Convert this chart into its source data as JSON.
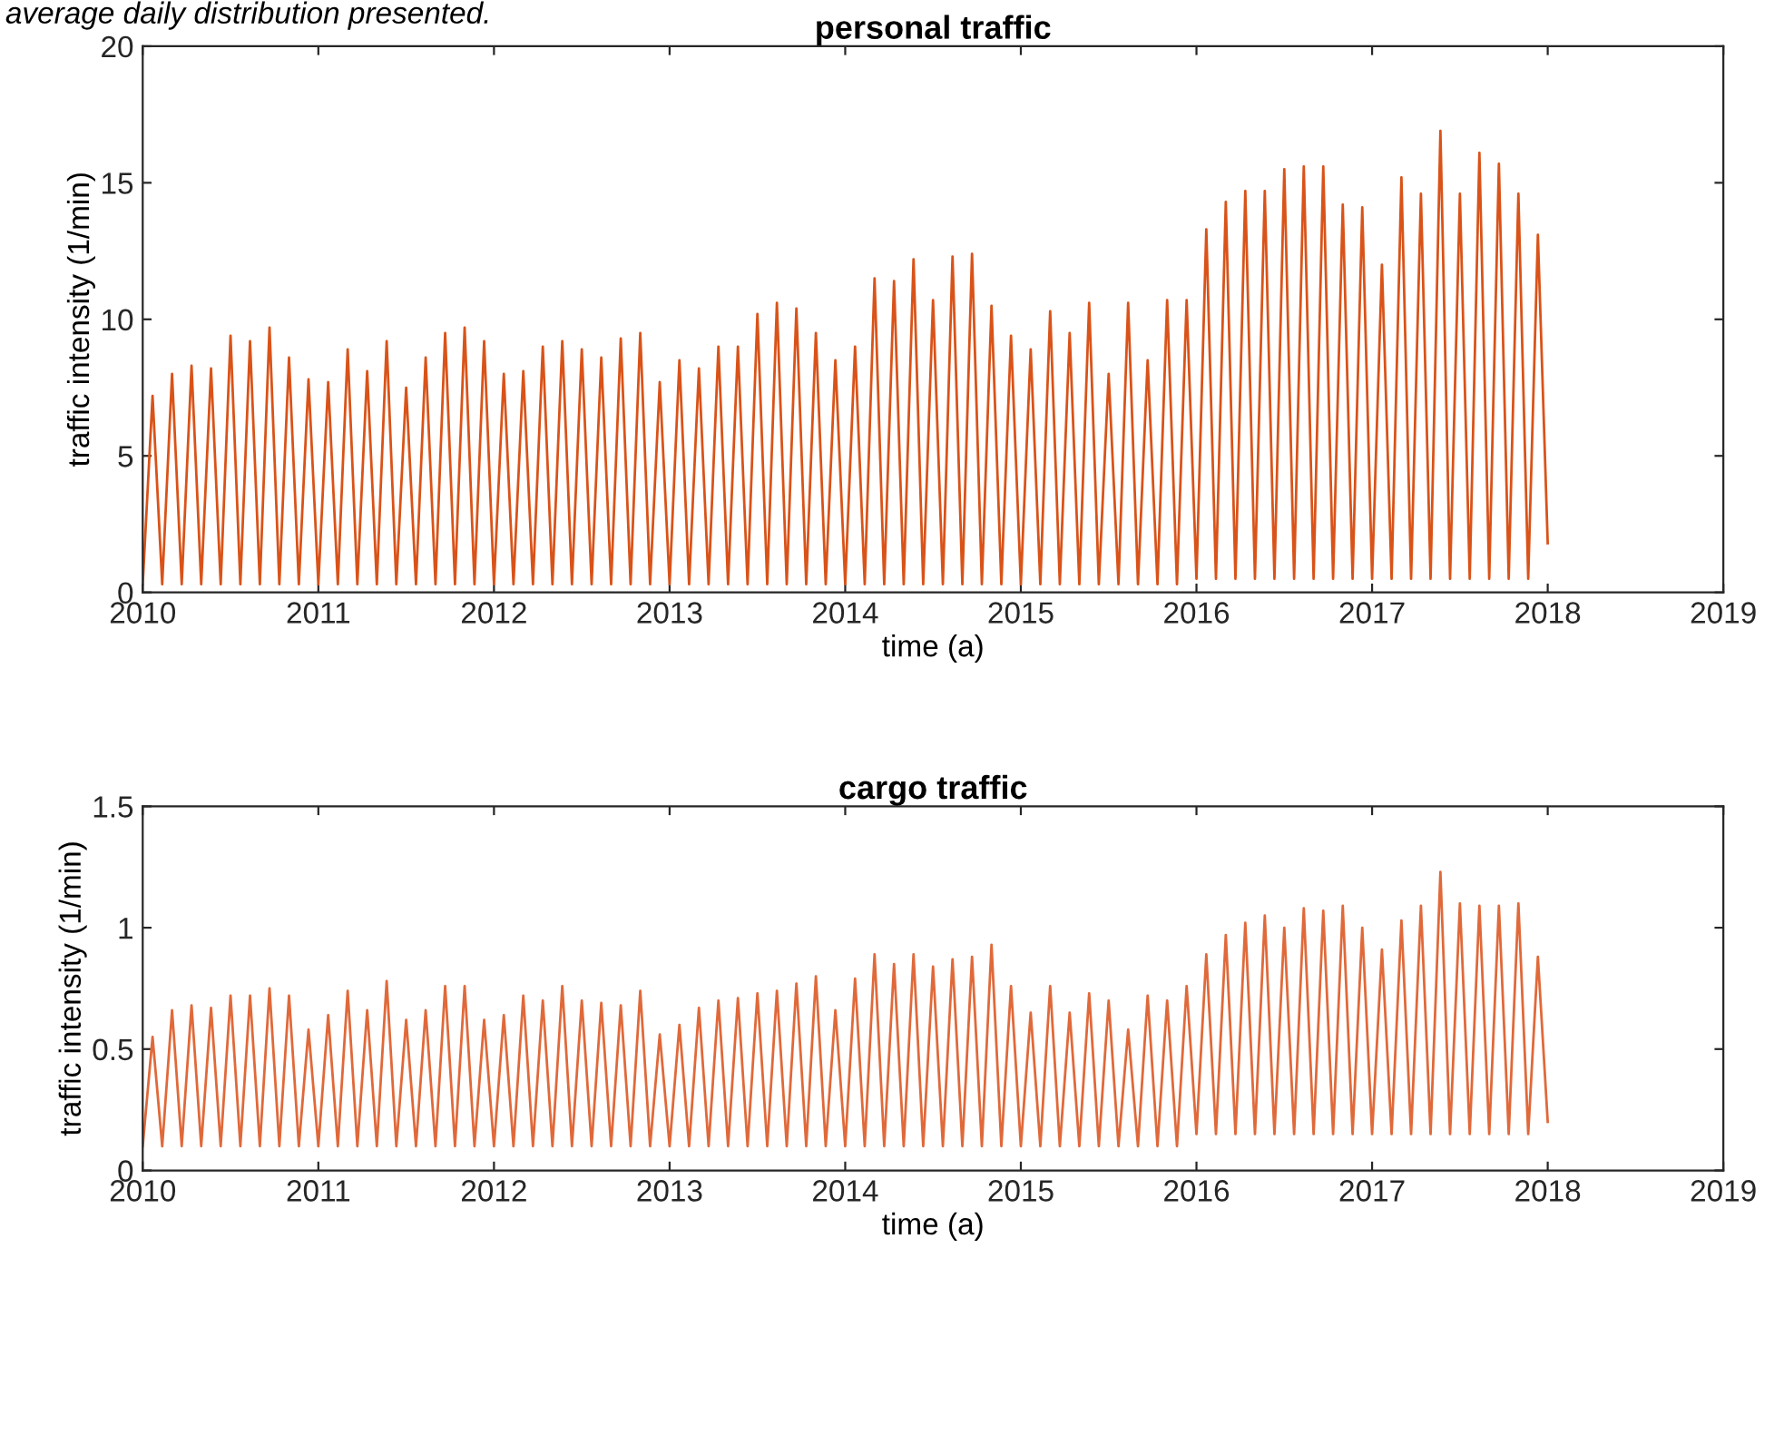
{
  "chart_data": [
    {
      "type": "line",
      "title": "personal traffic",
      "xlabel": "time (a)",
      "ylabel": "traffic intensity (1/min)",
      "annotations": [
        "average daily distribution presented."
      ],
      "xlim": [
        2010,
        2019
      ],
      "xticks": [
        2010,
        2011,
        2012,
        2013,
        2014,
        2015,
        2016,
        2017,
        2018,
        2019
      ],
      "ylim": [
        0,
        20
      ],
      "yticks": [
        0,
        5,
        10,
        15,
        20
      ],
      "grid": false,
      "x": [
        2010,
        2010.056,
        2010.111,
        2010.167,
        2010.222,
        2010.278,
        2010.333,
        2010.389,
        2010.444,
        2010.5,
        2010.556,
        2010.611,
        2010.667,
        2010.722,
        2010.778,
        2010.833,
        2010.889,
        2010.944,
        2011,
        2011.056,
        2011.111,
        2011.167,
        2011.222,
        2011.278,
        2011.333,
        2011.389,
        2011.444,
        2011.5,
        2011.556,
        2011.611,
        2011.667,
        2011.722,
        2011.778,
        2011.833,
        2011.889,
        2011.944,
        2012,
        2012.056,
        2012.111,
        2012.167,
        2012.222,
        2012.278,
        2012.333,
        2012.389,
        2012.444,
        2012.5,
        2012.556,
        2012.611,
        2012.667,
        2012.722,
        2012.778,
        2012.833,
        2012.889,
        2012.944,
        2013,
        2013.056,
        2013.111,
        2013.167,
        2013.222,
        2013.278,
        2013.333,
        2013.389,
        2013.444,
        2013.5,
        2013.556,
        2013.611,
        2013.667,
        2013.722,
        2013.778,
        2013.833,
        2013.889,
        2013.944,
        2014,
        2014.056,
        2014.111,
        2014.167,
        2014.222,
        2014.278,
        2014.333,
        2014.389,
        2014.444,
        2014.5,
        2014.556,
        2014.611,
        2014.667,
        2014.722,
        2014.778,
        2014.833,
        2014.889,
        2014.944,
        2015,
        2015.056,
        2015.111,
        2015.167,
        2015.222,
        2015.278,
        2015.333,
        2015.389,
        2015.444,
        2015.5,
        2015.556,
        2015.611,
        2015.667,
        2015.722,
        2015.778,
        2015.833,
        2015.889,
        2015.944,
        2016,
        2016.056,
        2016.111,
        2016.167,
        2016.222,
        2016.278,
        2016.333,
        2016.389,
        2016.444,
        2016.5,
        2016.556,
        2016.611,
        2016.667,
        2016.722,
        2016.778,
        2016.833,
        2016.889,
        2016.944,
        2017,
        2017.056,
        2017.111,
        2017.167,
        2017.222,
        2017.278,
        2017.333,
        2017.389,
        2017.444,
        2017.5,
        2017.556,
        2017.611,
        2017.667,
        2017.722,
        2017.778,
        2017.833,
        2017.889,
        2017.944,
        2018
      ],
      "series": [
        {
          "color": "#d95319",
          "values": [
            0.3,
            7.2,
            0.3,
            8.0,
            0.3,
            8.3,
            0.3,
            8.2,
            0.3,
            9.4,
            0.3,
            9.2,
            0.3,
            9.7,
            0.3,
            8.6,
            0.3,
            7.8,
            0.3,
            7.7,
            0.3,
            8.9,
            0.3,
            8.1,
            0.3,
            9.2,
            0.3,
            7.5,
            0.3,
            8.6,
            0.3,
            9.5,
            0.3,
            9.7,
            0.3,
            9.2,
            0.3,
            8.0,
            0.3,
            8.1,
            0.3,
            9.0,
            0.3,
            9.2,
            0.3,
            8.9,
            0.3,
            8.6,
            0.3,
            9.3,
            0.3,
            9.5,
            0.3,
            7.7,
            0.3,
            8.5,
            0.3,
            8.2,
            0.3,
            9.0,
            0.3,
            9.0,
            0.3,
            10.2,
            0.3,
            10.6,
            0.3,
            10.4,
            0.3,
            9.5,
            0.3,
            8.5,
            0.3,
            9.0,
            0.3,
            11.5,
            0.3,
            11.4,
            0.3,
            12.2,
            0.3,
            10.7,
            0.3,
            12.3,
            0.3,
            12.4,
            0.3,
            10.5,
            0.3,
            9.4,
            0.3,
            8.9,
            0.3,
            10.3,
            0.3,
            9.5,
            0.3,
            10.6,
            0.3,
            8.0,
            0.3,
            10.6,
            0.3,
            8.5,
            0.3,
            10.7,
            0.3,
            10.7,
            0.5,
            13.3,
            0.5,
            14.3,
            0.5,
            14.7,
            0.5,
            14.7,
            0.5,
            15.5,
            0.5,
            15.6,
            0.5,
            15.6,
            0.5,
            14.2,
            0.5,
            14.1,
            0.5,
            12.0,
            0.5,
            15.2,
            0.5,
            14.6,
            0.5,
            16.9,
            0.5,
            14.6,
            0.5,
            16.1,
            0.5,
            15.7,
            0.5,
            14.6,
            0.5,
            13.1,
            1.8
          ]
        }
      ]
    },
    {
      "type": "line",
      "title": "cargo traffic",
      "xlabel": "time (a)",
      "ylabel": "traffic intensity (1/min)",
      "xlim": [
        2010,
        2019
      ],
      "xticks": [
        2010,
        2011,
        2012,
        2013,
        2014,
        2015,
        2016,
        2017,
        2018,
        2019
      ],
      "ylim": [
        0,
        1.5
      ],
      "yticks": [
        0,
        0.5,
        1,
        1.5
      ],
      "grid": false,
      "x": [
        2010,
        2010.056,
        2010.111,
        2010.167,
        2010.222,
        2010.278,
        2010.333,
        2010.389,
        2010.444,
        2010.5,
        2010.556,
        2010.611,
        2010.667,
        2010.722,
        2010.778,
        2010.833,
        2010.889,
        2010.944,
        2011,
        2011.056,
        2011.111,
        2011.167,
        2011.222,
        2011.278,
        2011.333,
        2011.389,
        2011.444,
        2011.5,
        2011.556,
        2011.611,
        2011.667,
        2011.722,
        2011.778,
        2011.833,
        2011.889,
        2011.944,
        2012,
        2012.056,
        2012.111,
        2012.167,
        2012.222,
        2012.278,
        2012.333,
        2012.389,
        2012.444,
        2012.5,
        2012.556,
        2012.611,
        2012.667,
        2012.722,
        2012.778,
        2012.833,
        2012.889,
        2012.944,
        2013,
        2013.056,
        2013.111,
        2013.167,
        2013.222,
        2013.278,
        2013.333,
        2013.389,
        2013.444,
        2013.5,
        2013.556,
        2013.611,
        2013.667,
        2013.722,
        2013.778,
        2013.833,
        2013.889,
        2013.944,
        2014,
        2014.056,
        2014.111,
        2014.167,
        2014.222,
        2014.278,
        2014.333,
        2014.389,
        2014.444,
        2014.5,
        2014.556,
        2014.611,
        2014.667,
        2014.722,
        2014.778,
        2014.833,
        2014.889,
        2014.944,
        2015,
        2015.056,
        2015.111,
        2015.167,
        2015.222,
        2015.278,
        2015.333,
        2015.389,
        2015.444,
        2015.5,
        2015.556,
        2015.611,
        2015.667,
        2015.722,
        2015.778,
        2015.833,
        2015.889,
        2015.944,
        2016,
        2016.056,
        2016.111,
        2016.167,
        2016.222,
        2016.278,
        2016.333,
        2016.389,
        2016.444,
        2016.5,
        2016.556,
        2016.611,
        2016.667,
        2016.722,
        2016.778,
        2016.833,
        2016.889,
        2016.944,
        2017,
        2017.056,
        2017.111,
        2017.167,
        2017.222,
        2017.278,
        2017.333,
        2017.389,
        2017.444,
        2017.5,
        2017.556,
        2017.611,
        2017.667,
        2017.722,
        2017.778,
        2017.833,
        2017.889,
        2017.944,
        2018
      ],
      "series": [
        {
          "color": "#e0693a",
          "values": [
            0.1,
            0.55,
            0.1,
            0.66,
            0.1,
            0.68,
            0.1,
            0.67,
            0.1,
            0.72,
            0.1,
            0.72,
            0.1,
            0.75,
            0.1,
            0.72,
            0.1,
            0.58,
            0.1,
            0.64,
            0.1,
            0.74,
            0.1,
            0.66,
            0.1,
            0.78,
            0.1,
            0.62,
            0.1,
            0.66,
            0.1,
            0.76,
            0.1,
            0.76,
            0.1,
            0.62,
            0.1,
            0.64,
            0.1,
            0.72,
            0.1,
            0.7,
            0.1,
            0.76,
            0.1,
            0.7,
            0.1,
            0.69,
            0.1,
            0.68,
            0.1,
            0.74,
            0.1,
            0.56,
            0.1,
            0.6,
            0.1,
            0.67,
            0.1,
            0.7,
            0.1,
            0.71,
            0.1,
            0.73,
            0.1,
            0.74,
            0.1,
            0.77,
            0.1,
            0.8,
            0.1,
            0.66,
            0.1,
            0.79,
            0.1,
            0.89,
            0.1,
            0.85,
            0.1,
            0.89,
            0.1,
            0.84,
            0.1,
            0.87,
            0.1,
            0.88,
            0.1,
            0.93,
            0.1,
            0.76,
            0.1,
            0.65,
            0.1,
            0.76,
            0.1,
            0.65,
            0.1,
            0.73,
            0.1,
            0.7,
            0.1,
            0.58,
            0.1,
            0.72,
            0.1,
            0.7,
            0.1,
            0.76,
            0.15,
            0.89,
            0.15,
            0.97,
            0.15,
            1.02,
            0.15,
            1.05,
            0.15,
            1.0,
            0.15,
            1.08,
            0.15,
            1.07,
            0.15,
            1.09,
            0.15,
            1.0,
            0.15,
            0.91,
            0.15,
            1.03,
            0.15,
            1.09,
            0.15,
            1.23,
            0.15,
            1.1,
            0.15,
            1.09,
            0.15,
            1.09,
            0.15,
            1.1,
            0.15,
            0.88,
            0.2
          ]
        }
      ]
    }
  ]
}
